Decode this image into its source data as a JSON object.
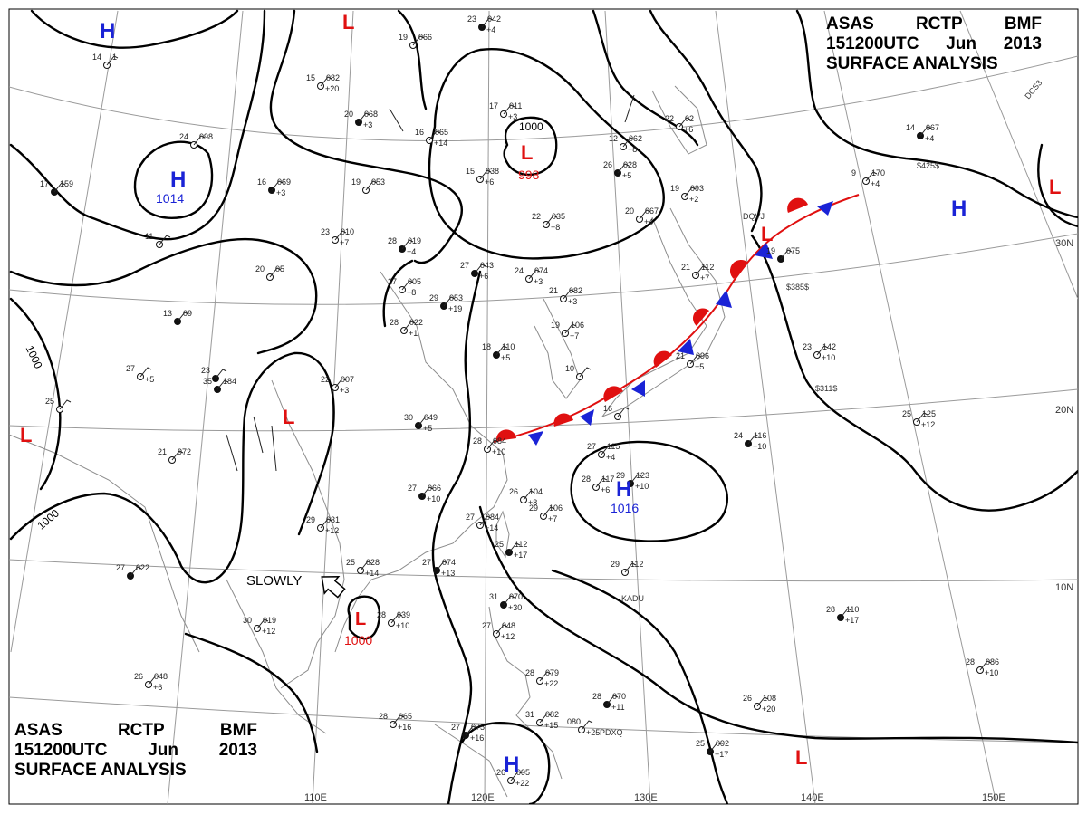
{
  "header": {
    "agency": [
      "ASAS",
      "RCTP",
      "BMF"
    ],
    "valid": [
      "151200UTC",
      "Jun",
      "2013"
    ],
    "product": "SURFACE ANALYSIS"
  },
  "colors": {
    "isobar": "#000000",
    "high": "#1a23d6",
    "low": "#e01010",
    "warm_front": "#e01010",
    "cold_front": "#1a23d6",
    "grid": "#9a9a9a",
    "coast": "#8c8c8c",
    "station": "#222222"
  },
  "longitude_labels": [
    "110E",
    "120E",
    "130E",
    "140E",
    "150E"
  ],
  "latitude_labels": [
    "30N",
    "20N",
    "10N"
  ],
  "isobar_labels": [
    "1000",
    "1000",
    "1000"
  ],
  "pressure_centers": [
    {
      "type": "H",
      "value": ""
    },
    {
      "type": "H",
      "value": "1014"
    },
    {
      "type": "L",
      "value": ""
    },
    {
      "type": "L",
      "value": "998"
    },
    {
      "type": "L",
      "value": ""
    },
    {
      "type": "L",
      "value": ""
    },
    {
      "type": "L",
      "value": "1000"
    },
    {
      "type": "H",
      "value": "1016"
    },
    {
      "type": "H",
      "value": ""
    },
    {
      "type": "H",
      "value": ""
    },
    {
      "type": "L",
      "value": ""
    },
    {
      "type": "L",
      "value": ""
    },
    {
      "type": "L",
      "value": ""
    }
  ],
  "motion_annotation": "SLOWLY",
  "ship_ids": [
    "DQVJ",
    "$385$",
    "$311$",
    "$425$",
    "KADU",
    "PDXQ",
    "DCS3"
  ],
  "stations": [
    {
      "t": "23",
      "p": "042",
      "d": "+4"
    },
    {
      "t": "17",
      "p": "011",
      "d": "+3"
    },
    {
      "t": "15",
      "p": "082",
      "d": "+20"
    },
    {
      "t": "20",
      "p": "068",
      "d": "+3"
    },
    {
      "t": "16",
      "p": "065",
      "d": "+14"
    },
    {
      "t": "24",
      "p": "098",
      "d": ""
    },
    {
      "t": "16",
      "p": "069",
      "d": "+3"
    },
    {
      "t": "19",
      "p": "053",
      "d": ""
    },
    {
      "t": "23",
      "p": "010",
      "d": "+7"
    },
    {
      "t": "28",
      "p": "019",
      "d": "+4"
    },
    {
      "t": "15",
      "p": "038",
      "d": "+6"
    },
    {
      "t": "22",
      "p": "035",
      "d": "+8"
    },
    {
      "t": "27",
      "p": "043",
      "d": "+6"
    },
    {
      "t": "24",
      "p": "074",
      "d": "+3"
    },
    {
      "t": "27",
      "p": "005",
      "d": "+8"
    },
    {
      "t": "29",
      "p": "053",
      "d": "+19"
    },
    {
      "t": "21",
      "p": "082",
      "d": "+3"
    },
    {
      "t": "28",
      "p": "022",
      "d": "+1"
    },
    {
      "t": "18",
      "p": "110",
      "d": "+5"
    },
    {
      "t": "19",
      "p": "106",
      "d": "+7"
    },
    {
      "t": "22",
      "p": "007",
      "d": "+3"
    },
    {
      "t": "30",
      "p": "049",
      "d": "+5"
    },
    {
      "t": "28",
      "p": "084",
      "d": "+10"
    },
    {
      "t": "27",
      "p": "115",
      "d": "+4"
    },
    {
      "t": "27",
      "p": "066",
      "d": "+10"
    },
    {
      "t": "26",
      "p": "104",
      "d": "+8"
    },
    {
      "t": "28",
      "p": "117",
      "d": "+6"
    },
    {
      "t": "29",
      "p": "123",
      "d": "+10"
    },
    {
      "t": "29",
      "p": "106",
      "d": "+7"
    },
    {
      "t": "27",
      "p": "084",
      "d": "+14"
    },
    {
      "t": "25",
      "p": "112",
      "d": "+17"
    },
    {
      "t": "29",
      "p": "031",
      "d": "+12"
    },
    {
      "t": "25",
      "p": "028",
      "d": "+14"
    },
    {
      "t": "27",
      "p": "074",
      "d": "+13"
    },
    {
      "t": "30",
      "p": "019",
      "d": "+12"
    },
    {
      "t": "28",
      "p": "039",
      "d": "+10"
    },
    {
      "t": "31",
      "p": "070",
      "d": "+30"
    },
    {
      "t": "27",
      "p": "048",
      "d": "+12"
    },
    {
      "t": "29",
      "p": "112",
      "d": ""
    },
    {
      "t": "27",
      "p": "022",
      "d": ""
    },
    {
      "t": "26",
      "p": "048",
      "d": "+6"
    },
    {
      "t": "28",
      "p": "065",
      "d": "+16"
    },
    {
      "t": "27",
      "p": "075",
      "d": "+16"
    },
    {
      "t": "31",
      "p": "082",
      "d": "+15"
    },
    {
      "t": "26",
      "p": "095",
      "d": "+22"
    },
    {
      "t": "28",
      "p": "070",
      "d": "+11"
    },
    {
      "t": "28",
      "p": "079",
      "d": "+22"
    },
    {
      "t": "080",
      "p": "",
      "d": "+25"
    },
    {
      "t": "24",
      "p": "116",
      "d": "+10"
    },
    {
      "t": "25",
      "p": "125",
      "d": "+12"
    },
    {
      "t": "23",
      "p": "142",
      "d": "+10"
    },
    {
      "t": "28",
      "p": "110",
      "d": "+17"
    },
    {
      "t": "28",
      "p": "086",
      "d": "+10"
    },
    {
      "t": "26",
      "p": "108",
      "d": "+20"
    },
    {
      "t": "25",
      "p": "092",
      "d": "+17"
    },
    {
      "t": "21",
      "p": "096",
      "d": "+5"
    },
    {
      "t": "21",
      "p": "112",
      "d": "+7"
    },
    {
      "t": "19",
      "p": "075",
      "d": ""
    },
    {
      "t": "19",
      "p": "093",
      "d": "+2"
    },
    {
      "t": "20",
      "p": "067",
      "d": "+4"
    },
    {
      "t": "26",
      "p": "028",
      "d": "+5"
    },
    {
      "t": "22",
      "p": "02",
      "d": "+6"
    },
    {
      "t": "12",
      "p": "062",
      "d": "+8"
    },
    {
      "t": "14",
      "p": "067",
      "d": "+4"
    },
    {
      "t": "9",
      "p": "170",
      "d": "+4"
    },
    {
      "t": "14",
      "p": "1",
      "d": ""
    },
    {
      "t": "17",
      "p": "159",
      "d": ""
    },
    {
      "t": "19",
      "p": "066",
      "d": ""
    },
    {
      "t": "20",
      "p": "05",
      "d": ""
    },
    {
      "t": "13",
      "p": "09",
      "d": ""
    },
    {
      "t": "11",
      "p": "",
      "d": ""
    },
    {
      "t": "27",
      "p": "",
      "d": "+5"
    },
    {
      "t": "23",
      "p": "",
      "d": ""
    },
    {
      "t": "25",
      "p": "",
      "d": ""
    },
    {
      "t": "21",
      "p": "972",
      "d": ""
    },
    {
      "t": "35",
      "p": "184",
      "d": ""
    },
    {
      "t": "10",
      "p": "",
      "d": ""
    },
    {
      "t": "16",
      "p": "",
      "d": ""
    },
    {
      "t": "",
      "p": "",
      "d": ""
    }
  ]
}
